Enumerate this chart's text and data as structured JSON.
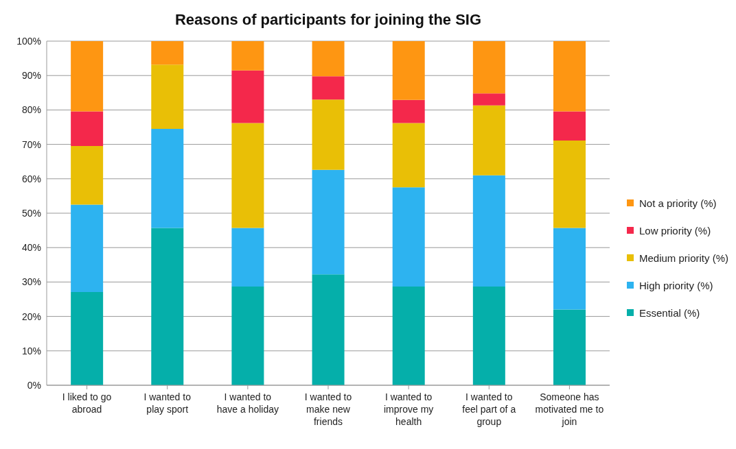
{
  "chart_data": {
    "type": "bar",
    "title": "Reasons of participants for joining the SIG",
    "categories": [
      "I liked to go abroad",
      "I wanted to play sport",
      "I wanted to have a holiday",
      "I wanted to make new friends",
      "I wanted to improve my health",
      "I wanted to feel part of a group",
      "Someone has motivated me to join"
    ],
    "stacked": true,
    "series": [
      {
        "name": "Essential (%)",
        "color": "#05afaa",
        "values": [
          27.1,
          45.7,
          28.7,
          32.2,
          28.7,
          28.7,
          22.0
        ]
      },
      {
        "name": "High priority (%)",
        "color": "#2db3f0",
        "values": [
          25.4,
          28.8,
          17.0,
          30.4,
          28.8,
          32.3,
          23.7
        ]
      },
      {
        "name": "Medium priority (%)",
        "color": "#e9bf06",
        "values": [
          17.0,
          18.7,
          30.5,
          20.4,
          18.7,
          20.3,
          25.4
        ]
      },
      {
        "name": "Low priority (%)",
        "color": "#f4284b",
        "values": [
          10.1,
          0,
          15.3,
          6.8,
          6.7,
          3.5,
          8.5
        ]
      },
      {
        "name": "Not a priority (%)",
        "color": "#fe9612",
        "values": [
          20.4,
          6.8,
          8.5,
          10.2,
          17.1,
          15.2,
          20.4
        ]
      }
    ],
    "ylim": [
      0,
      100
    ],
    "yticks": [
      {
        "value": 0,
        "label": "0%"
      },
      {
        "value": 10,
        "label": "10%"
      },
      {
        "value": 20,
        "label": "20%"
      },
      {
        "value": 30,
        "label": "30%"
      },
      {
        "value": 40,
        "label": "40%"
      },
      {
        "value": 50,
        "label": "50%"
      },
      {
        "value": 60,
        "label": "60%"
      },
      {
        "value": 70,
        "label": "70%"
      },
      {
        "value": 80,
        "label": "80%"
      },
      {
        "value": 90,
        "label": "90%"
      },
      {
        "value": 100,
        "label": "100%"
      }
    ],
    "grid": "y",
    "legend": "right"
  }
}
